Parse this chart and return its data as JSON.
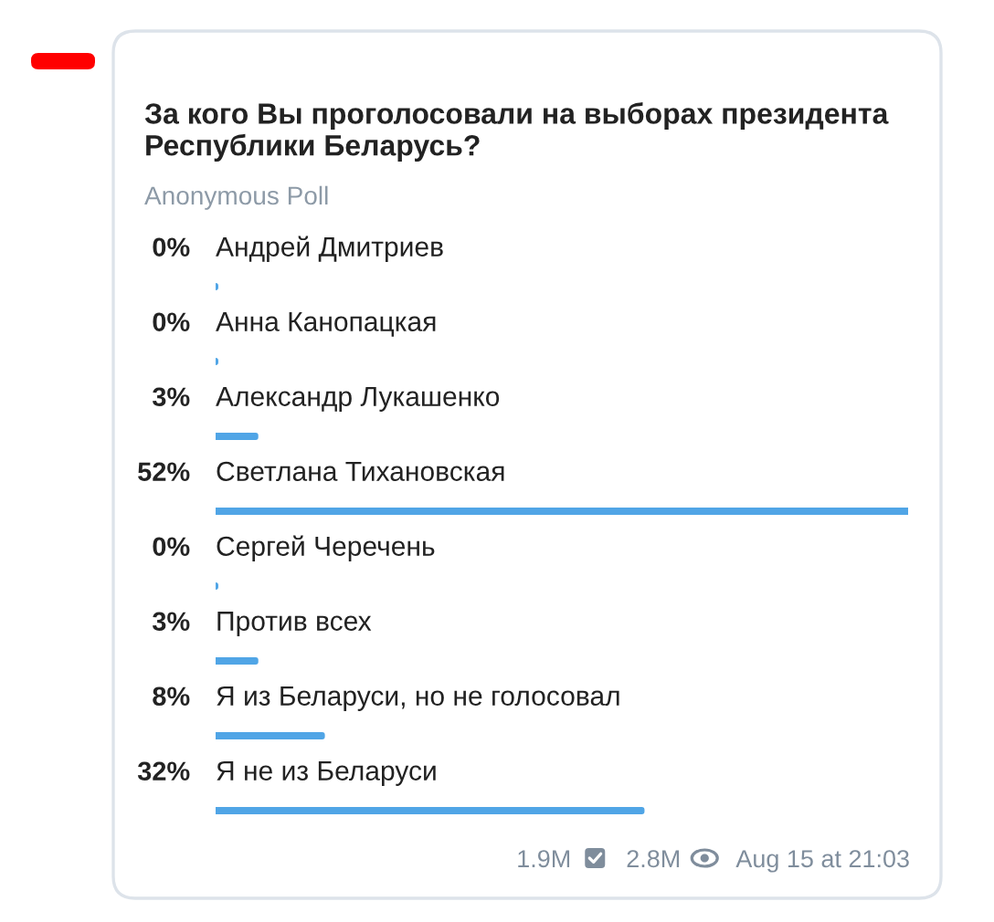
{
  "chart_data": {
    "type": "bar",
    "orientation": "horizontal",
    "title": "За кого Вы проголосовали на выборах президента Республики Беларусь?",
    "subtitle": "Anonymous Poll",
    "categories": [
      "Андрей Дмитриев",
      "Анна Канопацкая",
      "Александр Лукашенко",
      "Светлана Тихановская",
      "Сергей Черечень",
      "Против всех",
      "Я из Беларуси, но не голосовал",
      "Я не из Беларуси"
    ],
    "values": [
      0,
      0,
      3,
      52,
      0,
      3,
      8,
      32
    ],
    "value_labels": [
      "0%",
      "0%",
      "3%",
      "52%",
      "0%",
      "3%",
      "8%",
      "32%"
    ],
    "color": "#50a5e6",
    "annotations": [
      "1.9M",
      "2.8M",
      "Aug 15 at 21:03"
    ]
  }
}
